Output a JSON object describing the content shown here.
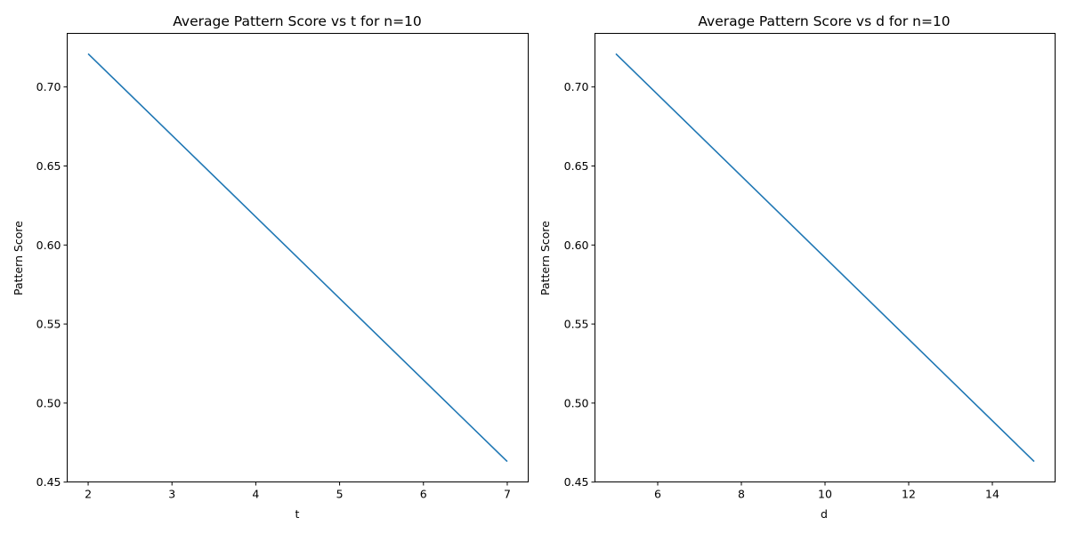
{
  "chart_data": [
    {
      "type": "line",
      "title": "Average Pattern Score vs t for n=10",
      "xlabel": "t",
      "ylabel": "Pattern Score",
      "x": [
        2,
        3,
        4,
        5,
        6,
        7
      ],
      "series": [
        {
          "values": [
            0.721,
            0.6694,
            0.6178,
            0.5662,
            0.5146,
            0.463
          ],
          "color": "#1f77b4"
        }
      ],
      "xlim": [
        1.75,
        7.25
      ],
      "ylim": [
        0.4501,
        0.7339
      ],
      "xticks": [
        2,
        3,
        4,
        5,
        6,
        7
      ],
      "xtick_labels": [
        "2",
        "3",
        "4",
        "5",
        "6",
        "7"
      ],
      "yticks": [
        0.45,
        0.5,
        0.55,
        0.6,
        0.65,
        0.7
      ],
      "ytick_labels": [
        "0.45",
        "0.50",
        "0.55",
        "0.60",
        "0.65",
        "0.70"
      ],
      "grid": false,
      "legend": "none"
    },
    {
      "type": "line",
      "title": "Average Pattern Score vs d for n=10",
      "xlabel": "d",
      "ylabel": "Pattern Score",
      "x": [
        5,
        7,
        9,
        11,
        13,
        15
      ],
      "series": [
        {
          "values": [
            0.721,
            0.6694,
            0.6178,
            0.5662,
            0.5146,
            0.463
          ],
          "color": "#1f77b4"
        }
      ],
      "xlim": [
        4.5,
        15.5
      ],
      "ylim": [
        0.4501,
        0.7339
      ],
      "xticks": [
        6,
        8,
        10,
        12,
        14
      ],
      "xtick_labels": [
        "6",
        "8",
        "10",
        "12",
        "14"
      ],
      "yticks": [
        0.45,
        0.5,
        0.55,
        0.6,
        0.65,
        0.7
      ],
      "ytick_labels": [
        "0.45",
        "0.50",
        "0.55",
        "0.60",
        "0.65",
        "0.70"
      ],
      "grid": false,
      "legend": "none"
    }
  ]
}
